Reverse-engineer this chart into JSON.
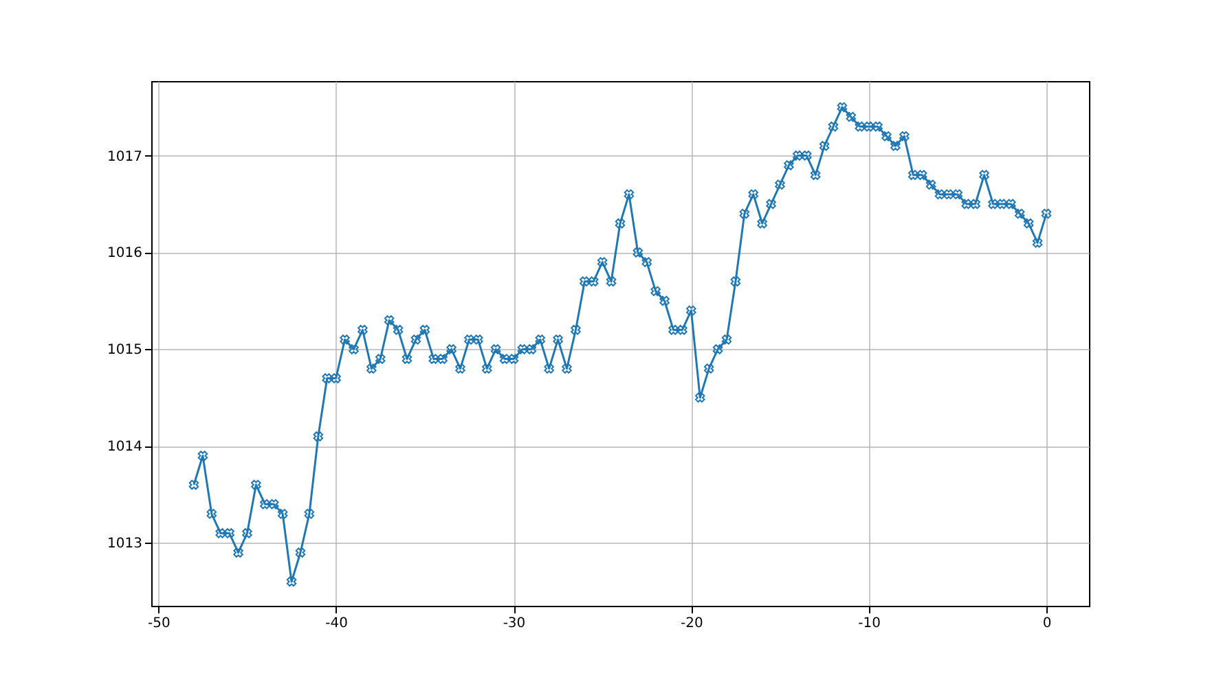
{
  "chart_data": {
    "type": "line",
    "x": [
      -48,
      -47.5,
      -47,
      -46.5,
      -46,
      -45.5,
      -45,
      -44.5,
      -44,
      -43.5,
      -43,
      -42.5,
      -42,
      -41.5,
      -41,
      -40.5,
      -40,
      -39.5,
      -39,
      -38.5,
      -38,
      -37.5,
      -37,
      -36.5,
      -36,
      -35.5,
      -35,
      -34.5,
      -34,
      -33.5,
      -33,
      -32.5,
      -32,
      -31.5,
      -31,
      -30.5,
      -30,
      -29.5,
      -29,
      -28.5,
      -28,
      -27.5,
      -27,
      -26.5,
      -26,
      -25.5,
      -25,
      -24.5,
      -24,
      -23.5,
      -23,
      -22.5,
      -22,
      -21.5,
      -21,
      -20.5,
      -20,
      -19.5,
      -19,
      -18.5,
      -18,
      -17.5,
      -17,
      -16.5,
      -16,
      -15.5,
      -15,
      -14.5,
      -14,
      -13.5,
      -13,
      -12.5,
      -12,
      -11.5,
      -11,
      -10.5,
      -10,
      -9.5,
      -9,
      -8.5,
      -8,
      -7.5,
      -7,
      -6.5,
      -6,
      -5.5,
      -5,
      -4.5,
      -4,
      -3.5,
      -3,
      -2.5,
      -2,
      -1.5,
      -1,
      -0.5,
      0
    ],
    "series": [
      {
        "color": "#1f77b4",
        "values": [
          1013.6,
          1013.9,
          1013.3,
          1013.1,
          1013.1,
          1012.9,
          1013.1,
          1013.6,
          1013.4,
          1013.4,
          1013.3,
          1012.6,
          1012.9,
          1013.3,
          1014.1,
          1014.7,
          1014.7,
          1015.1,
          1015.0,
          1015.2,
          1014.8,
          1014.9,
          1015.3,
          1015.2,
          1014.9,
          1015.1,
          1015.2,
          1014.9,
          1014.9,
          1015.0,
          1014.8,
          1015.1,
          1015.1,
          1014.8,
          1015.0,
          1014.9,
          1014.9,
          1015.0,
          1015.0,
          1015.1,
          1014.8,
          1015.1,
          1014.8,
          1015.2,
          1015.7,
          1015.7,
          1015.9,
          1015.7,
          1016.3,
          1016.6,
          1016.0,
          1015.9,
          1015.6,
          1015.5,
          1015.2,
          1015.2,
          1015.4,
          1014.5,
          1014.8,
          1015.0,
          1015.1,
          1015.7,
          1016.4,
          1016.6,
          1016.3,
          1016.5,
          1016.7,
          1016.9,
          1017.0,
          1017.0,
          1016.8,
          1017.1,
          1017.3,
          1017.5,
          1017.4,
          1017.3,
          1017.3,
          1017.3,
          1017.2,
          1017.1,
          1017.2,
          1016.8,
          1016.8,
          1016.7,
          1016.6,
          1016.6,
          1016.6,
          1016.5,
          1016.5,
          1016.8,
          1016.5,
          1016.5,
          1016.5,
          1016.4,
          1016.3,
          1016.1,
          1016.4
        ]
      }
    ],
    "xlim": [
      -50.4,
      2.4
    ],
    "xticks": [
      -50,
      -40,
      -30,
      -20,
      -10,
      0
    ],
    "ylim": [
      1012.35,
      1017.77
    ],
    "yticks": [
      1013,
      1014,
      1015,
      1016,
      1017
    ],
    "grid": true,
    "marker": "cross",
    "line_style": "solid"
  }
}
